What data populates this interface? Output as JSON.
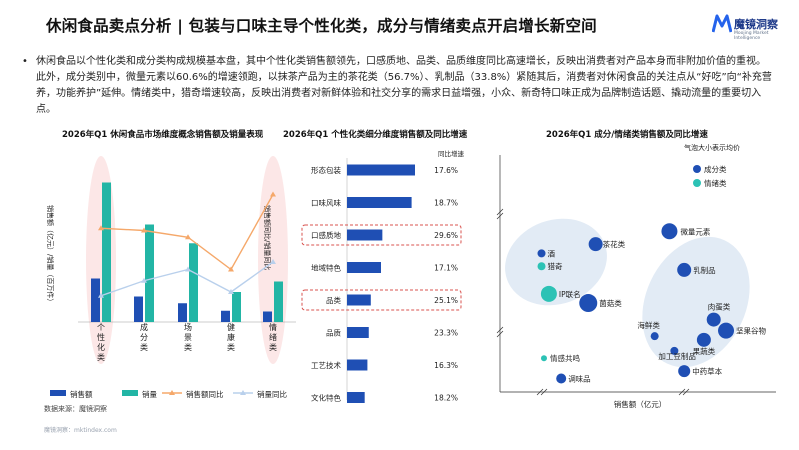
{
  "header": {
    "title": "休闲食品卖点分析 | 包装与口味主导个性化类，成分与情绪卖点开启增长新空间",
    "logo_cn": "魔镜洞察",
    "logo_en": "Moojing Market Intelligence"
  },
  "summary": "休闲食品以个性化类和成分类构成规模基本盘，其中个性化类销售额领先，口感质地、品类、品质维度同比高速增长，反映出消费者对产品本身而非附加价值的重视。此外，成分类别中，微量元素以60.6%的增速领跑，以抹茶产品为主的茶花类（56.7%）、乳制品（33.8%）紧随其后，消费者对休闲食品的关注点从“好吃”向“补充营养，功能养护”延伸。情绪类中，猎奇增速较高，反映出消费者对新鲜体验和社交分享的需求日益增强，小众、新奇特口味正成为品牌制造话题、撬动流量的重要切入点。",
  "footer": {
    "source": "数据来源：魔镜洞察",
    "url": "魔镜洞察：mktindex.com"
  },
  "chart_data": [
    {
      "type": "bar",
      "title": "2026年Q1 休闲食品市场维度概念销售额及销量表现",
      "categories": [
        "个性化类",
        "成分类",
        "场景类",
        "健康类",
        "情绪类"
      ],
      "ylabel": "销售额（亿元）/销量（百万件）",
      "y2label": "销售额同比/销量同比",
      "series": [
        {
          "name": "销售额",
          "color": "#1f4fb4",
          "values": [
            58,
            34,
            25,
            15,
            14
          ]
        },
        {
          "name": "销量",
          "color": "#22b5a5",
          "values": [
            186,
            130,
            105,
            40,
            54
          ]
        },
        {
          "name": "销售额同比",
          "color": "#f5a86a",
          "values": [
            125,
            122,
            113,
            70,
            170
          ]
        },
        {
          "name": "销量同比",
          "color": "#b9d0ec",
          "values": [
            35,
            55,
            70,
            40,
            80
          ]
        }
      ],
      "highlight": [
        "个性化类",
        "情绪类"
      ],
      "legend": "bottom"
    },
    {
      "type": "bar",
      "orientation": "horizontal",
      "title": "2026年Q1 个性化类细分维度销售额及同比增速",
      "growth_header": "同比增速",
      "categories": [
        "形态包装",
        "口味风味",
        "口感质地",
        "地域特色",
        "品类",
        "品质",
        "工艺技术",
        "文化特色"
      ],
      "values": [
        100,
        95,
        52,
        50,
        35,
        32,
        30,
        26
      ],
      "growth": [
        "17.6%",
        "18.7%",
        "29.6%",
        "17.1%",
        "25.1%",
        "23.3%",
        "16.3%",
        "18.2%"
      ],
      "highlight": [
        "口感质地",
        "品类"
      ],
      "color": "#1f4fb4"
    },
    {
      "type": "scatter",
      "title": "2026年Q1 成分/情绪类销售额及同比增速",
      "xlabel": "销售额（亿元）",
      "size_note": "气泡大小表示均价",
      "legend": [
        "成分类",
        "情绪类"
      ],
      "series": [
        {
          "name": "成分类",
          "color": "#1f4fb4",
          "points": [
            {
              "label": "微量元素",
              "x": 64,
              "y": 83,
              "r": 8
            },
            {
              "label": "茶花类",
              "x": 34,
              "y": 76,
              "r": 7
            },
            {
              "label": "酒",
              "x": 12,
              "y": 71,
              "r": 4
            },
            {
              "label": "乳制品",
              "x": 70,
              "y": 62,
              "r": 7
            },
            {
              "label": "菌菇类",
              "x": 31,
              "y": 44,
              "r": 9
            },
            {
              "label": "肉蛋类",
              "x": 82,
              "y": 35,
              "r": 7
            },
            {
              "label": "坚果谷物",
              "x": 87,
              "y": 29,
              "r": 8
            },
            {
              "label": "海鲜类",
              "x": 58,
              "y": 26,
              "r": 4
            },
            {
              "label": "果蔬类",
              "x": 78,
              "y": 24,
              "r": 7
            },
            {
              "label": "加工豆制品",
              "x": 66,
              "y": 18,
              "r": 4
            },
            {
              "label": "中药草本",
              "x": 70,
              "y": 7,
              "r": 6
            },
            {
              "label": "调味品",
              "x": 20,
              "y": 3,
              "r": 5
            }
          ]
        },
        {
          "name": "情绪类",
          "color": "#2cc2b5",
          "points": [
            {
              "label": "猎奇",
              "x": 12,
              "y": 64,
              "r": 4
            },
            {
              "label": "IP联名",
              "x": 15,
              "y": 49,
              "r": 8
            },
            {
              "label": "情感共鸣",
              "x": 13,
              "y": 14,
              "r": 3
            }
          ]
        }
      ]
    }
  ]
}
